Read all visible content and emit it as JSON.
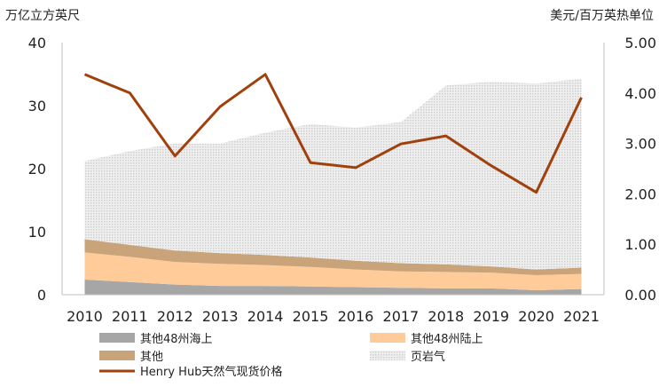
{
  "chart_data": {
    "type": "area",
    "categories": [
      "2010",
      "2011",
      "2012",
      "2013",
      "2014",
      "2015",
      "2016",
      "2017",
      "2018",
      "2019",
      "2020",
      "2021"
    ],
    "ylabel_left": "万亿立方英尺",
    "ylabel_right": "美元/百万英热单位",
    "ylim_left": [
      0,
      40
    ],
    "ylim_right": [
      0,
      5
    ],
    "left_ticks": [
      "0",
      "10",
      "20",
      "30",
      "40"
    ],
    "right_ticks": [
      "0.00",
      "1.00",
      "2.00",
      "3.00",
      "4.00",
      "5.00"
    ],
    "grid": false,
    "legend_position": "bottom",
    "series": [
      {
        "name": "其他48州海上",
        "type": "stacked-area",
        "axis": "left",
        "color": "#a6a6a6",
        "values": [
          2.4,
          2.0,
          1.6,
          1.4,
          1.4,
          1.3,
          1.2,
          1.1,
          1.0,
          1.0,
          0.7,
          0.9
        ]
      },
      {
        "name": "其他48州陆上",
        "type": "stacked-area",
        "axis": "left",
        "color": "#ffcc99",
        "values": [
          4.3,
          4.0,
          3.6,
          3.5,
          3.3,
          3.1,
          2.8,
          2.6,
          2.6,
          2.5,
          2.4,
          2.4
        ]
      },
      {
        "name": "其他",
        "type": "stacked-area",
        "axis": "left",
        "color": "#c9a37a",
        "values": [
          2.1,
          1.9,
          1.8,
          1.7,
          1.6,
          1.5,
          1.4,
          1.3,
          1.2,
          1.0,
          0.9,
          1.0
        ]
      },
      {
        "name": "页岩气",
        "type": "stacked-area",
        "axis": "left",
        "color": "#d9d9d9",
        "values": [
          12.4,
          14.9,
          17.0,
          17.4,
          19.4,
          21.2,
          21.1,
          22.4,
          28.4,
          29.3,
          29.5,
          30.0
        ]
      },
      {
        "name": "Henry Hub天然气现货价格",
        "type": "line",
        "axis": "right",
        "color": "#a0410d",
        "values": [
          4.37,
          4.0,
          2.75,
          3.73,
          4.37,
          2.62,
          2.52,
          2.99,
          3.15,
          2.56,
          2.03,
          3.91
        ]
      }
    ]
  }
}
